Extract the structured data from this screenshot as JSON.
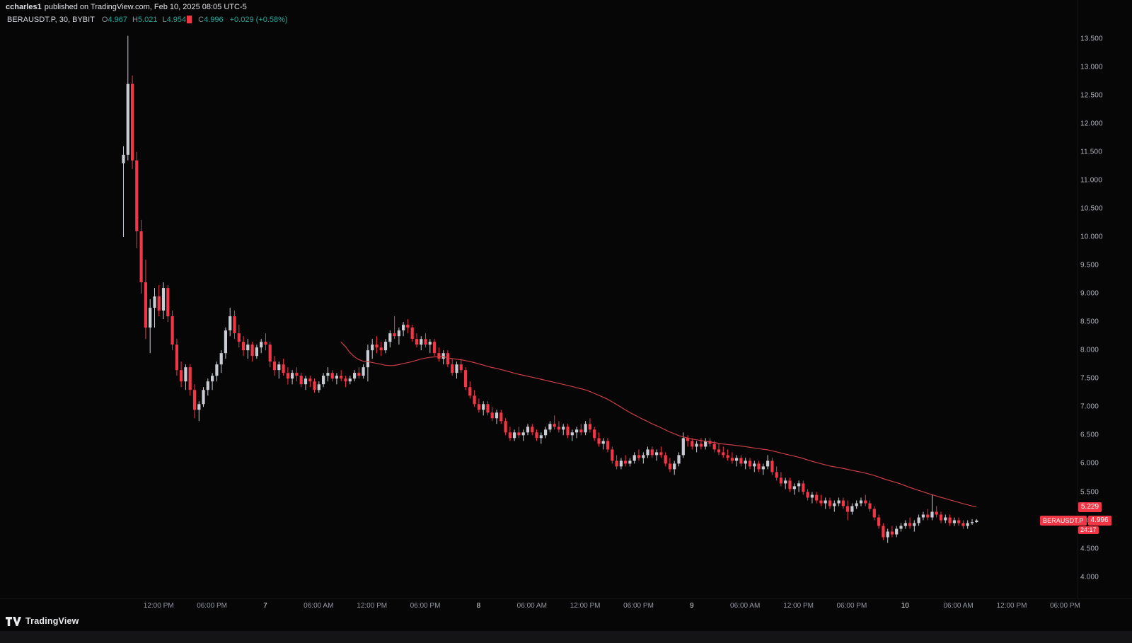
{
  "top_bar": {
    "username": "ccharles1",
    "text": "published on TradingView.com, Feb 10, 2025 08:05 UTC-5"
  },
  "legend": {
    "symbol_title": "BERAUSDT.P, 30, BYBIT",
    "o_label": "O",
    "o_value": "4.967",
    "h_label": "H",
    "h_value": "5.021",
    "l_label": "L",
    "l_value": "4.954",
    "c_label": "C",
    "c_value": "4.996",
    "change": "+0.029 (+0.58%)"
  },
  "footer": {
    "logo_text": "TradingView"
  },
  "colors": {
    "background": "#060607",
    "candle_up": "#c9ccd3",
    "candle_down": "#f23645",
    "ma_line": "#cc3d44",
    "badge_red": "#f23645",
    "axis_text": "#b2b5be",
    "axis_text_major": "#dfe1e6",
    "legend_value_green": "#26a69a"
  },
  "chart_data": {
    "type": "candlestick",
    "symbol": "BERAUSDT.P",
    "interval": "30",
    "exchange": "BYBIT",
    "title": "BERAUSDT.P, 30, BYBIT",
    "y_axis": {
      "min": 4.0,
      "max": 13.62,
      "tick_step": 0.5,
      "grid": false
    },
    "y_ticks": [
      "13.500",
      "13.000",
      "12.500",
      "12.000",
      "11.500",
      "11.000",
      "10.500",
      "10.000",
      "9.500",
      "9.000",
      "8.500",
      "8.000",
      "7.500",
      "7.000",
      "6.500",
      "6.000",
      "5.500",
      "5.000",
      "4.500",
      "4.000"
    ],
    "x_ticks": [
      {
        "text": "12:00 PM",
        "i": 8
      },
      {
        "text": "06:00 PM",
        "i": 20
      },
      {
        "text": "7",
        "i": 32,
        "major": true
      },
      {
        "text": "06:00 AM",
        "i": 44
      },
      {
        "text": "12:00 PM",
        "i": 56
      },
      {
        "text": "06:00 PM",
        "i": 68
      },
      {
        "text": "8",
        "i": 80,
        "major": true
      },
      {
        "text": "06:00 AM",
        "i": 92
      },
      {
        "text": "12:00 PM",
        "i": 104
      },
      {
        "text": "06:00 PM",
        "i": 116
      },
      {
        "text": "9",
        "i": 128,
        "major": true
      },
      {
        "text": "06:00 AM",
        "i": 140
      },
      {
        "text": "12:00 PM",
        "i": 152
      },
      {
        "text": "06:00 PM",
        "i": 164
      },
      {
        "text": "10",
        "i": 176,
        "major": true
      },
      {
        "text": "06:00 AM",
        "i": 188
      },
      {
        "text": "12:00 PM",
        "i": 200
      },
      {
        "text": "06:00 PM",
        "i": 212
      }
    ],
    "overlays": [
      {
        "name": "SMA",
        "period": 50,
        "last_value": 5.229
      }
    ],
    "badges": {
      "ma_value": "5.229",
      "symbol": "BERAUSDT.P",
      "last_price": "4.996",
      "countdown": "24:17"
    },
    "ohlc": [
      [
        11.3,
        11.6,
        10.0,
        11.45
      ],
      [
        11.45,
        13.55,
        11.35,
        12.7
      ],
      [
        12.7,
        12.85,
        11.2,
        11.35
      ],
      [
        11.35,
        11.5,
        9.8,
        10.1
      ],
      [
        10.1,
        10.3,
        9.0,
        9.2
      ],
      [
        9.2,
        9.6,
        8.2,
        8.4
      ],
      [
        8.4,
        8.9,
        7.95,
        8.75
      ],
      [
        8.75,
        9.1,
        8.4,
        8.95
      ],
      [
        8.95,
        9.15,
        8.6,
        8.7
      ],
      [
        8.7,
        9.2,
        8.55,
        9.1
      ],
      [
        9.1,
        9.15,
        8.5,
        8.6
      ],
      [
        8.6,
        8.7,
        8.0,
        8.1
      ],
      [
        8.1,
        8.2,
        7.55,
        7.65
      ],
      [
        7.65,
        7.8,
        7.35,
        7.45
      ],
      [
        7.45,
        7.75,
        7.3,
        7.7
      ],
      [
        7.7,
        7.75,
        7.2,
        7.3
      ],
      [
        7.3,
        7.4,
        6.8,
        6.95
      ],
      [
        6.95,
        7.1,
        6.75,
        7.05
      ],
      [
        7.05,
        7.35,
        7.0,
        7.3
      ],
      [
        7.3,
        7.5,
        7.2,
        7.45
      ],
      [
        7.45,
        7.6,
        7.3,
        7.55
      ],
      [
        7.55,
        7.8,
        7.45,
        7.75
      ],
      [
        7.75,
        8.0,
        7.6,
        7.95
      ],
      [
        7.95,
        8.4,
        7.85,
        8.35
      ],
      [
        8.35,
        8.75,
        8.25,
        8.6
      ],
      [
        8.6,
        8.7,
        8.2,
        8.3
      ],
      [
        8.3,
        8.45,
        8.05,
        8.15
      ],
      [
        8.15,
        8.25,
        7.9,
        8.0
      ],
      [
        8.0,
        8.2,
        7.85,
        8.1
      ],
      [
        8.1,
        8.15,
        7.8,
        7.9
      ],
      [
        7.9,
        8.1,
        7.85,
        8.05
      ],
      [
        8.05,
        8.2,
        7.95,
        8.15
      ],
      [
        8.15,
        8.3,
        8.0,
        8.1
      ],
      [
        8.1,
        8.15,
        7.7,
        7.8
      ],
      [
        7.8,
        7.9,
        7.55,
        7.65
      ],
      [
        7.65,
        7.8,
        7.5,
        7.75
      ],
      [
        7.75,
        7.85,
        7.55,
        7.6
      ],
      [
        7.6,
        7.7,
        7.4,
        7.5
      ],
      [
        7.5,
        7.65,
        7.4,
        7.6
      ],
      [
        7.6,
        7.7,
        7.45,
        7.55
      ],
      [
        7.55,
        7.6,
        7.35,
        7.4
      ],
      [
        7.4,
        7.55,
        7.3,
        7.5
      ],
      [
        7.5,
        7.55,
        7.35,
        7.45
      ],
      [
        7.45,
        7.5,
        7.25,
        7.3
      ],
      [
        7.3,
        7.45,
        7.25,
        7.4
      ],
      [
        7.4,
        7.6,
        7.35,
        7.55
      ],
      [
        7.55,
        7.7,
        7.45,
        7.6
      ],
      [
        7.6,
        7.65,
        7.45,
        7.5
      ],
      [
        7.5,
        7.6,
        7.4,
        7.55
      ],
      [
        7.55,
        7.65,
        7.45,
        7.5
      ],
      [
        7.5,
        7.55,
        7.35,
        7.45
      ],
      [
        7.45,
        7.55,
        7.4,
        7.5
      ],
      [
        7.5,
        7.65,
        7.45,
        7.6
      ],
      [
        7.6,
        7.7,
        7.5,
        7.55
      ],
      [
        7.55,
        7.75,
        7.5,
        7.7
      ],
      [
        7.7,
        8.1,
        7.45,
        8.0
      ],
      [
        8.0,
        8.2,
        7.85,
        8.1
      ],
      [
        8.1,
        8.25,
        7.95,
        8.05
      ],
      [
        8.05,
        8.15,
        7.9,
        8.0
      ],
      [
        8.0,
        8.2,
        7.95,
        8.15
      ],
      [
        8.15,
        8.35,
        8.05,
        8.3
      ],
      [
        8.3,
        8.6,
        8.2,
        8.25
      ],
      [
        8.25,
        8.4,
        8.1,
        8.35
      ],
      [
        8.35,
        8.5,
        8.25,
        8.45
      ],
      [
        8.45,
        8.55,
        8.3,
        8.4
      ],
      [
        8.4,
        8.45,
        8.15,
        8.2
      ],
      [
        8.2,
        8.3,
        8.05,
        8.1
      ],
      [
        8.1,
        8.25,
        8.0,
        8.2
      ],
      [
        8.2,
        8.3,
        8.05,
        8.1
      ],
      [
        8.1,
        8.2,
        7.95,
        8.15
      ],
      [
        8.15,
        8.2,
        7.9,
        7.95
      ],
      [
        7.95,
        8.05,
        7.8,
        7.85
      ],
      [
        7.85,
        8.0,
        7.75,
        7.95
      ],
      [
        7.95,
        8.0,
        7.7,
        7.75
      ],
      [
        7.75,
        7.85,
        7.55,
        7.6
      ],
      [
        7.6,
        7.8,
        7.5,
        7.75
      ],
      [
        7.75,
        7.85,
        7.6,
        7.65
      ],
      [
        7.65,
        7.7,
        7.3,
        7.35
      ],
      [
        7.35,
        7.45,
        7.15,
        7.2
      ],
      [
        7.2,
        7.3,
        7.0,
        7.05
      ],
      [
        7.05,
        7.15,
        6.9,
        6.95
      ],
      [
        6.95,
        7.1,
        6.85,
        7.05
      ],
      [
        7.05,
        7.1,
        6.85,
        6.9
      ],
      [
        6.9,
        7.0,
        6.75,
        6.8
      ],
      [
        6.8,
        6.95,
        6.7,
        6.9
      ],
      [
        6.9,
        6.95,
        6.7,
        6.75
      ],
      [
        6.75,
        6.8,
        6.5,
        6.55
      ],
      [
        6.55,
        6.65,
        6.4,
        6.45
      ],
      [
        6.45,
        6.6,
        6.4,
        6.55
      ],
      [
        6.55,
        6.65,
        6.45,
        6.5
      ],
      [
        6.5,
        6.6,
        6.4,
        6.55
      ],
      [
        6.55,
        6.7,
        6.5,
        6.65
      ],
      [
        6.65,
        6.7,
        6.5,
        6.55
      ],
      [
        6.55,
        6.6,
        6.4,
        6.45
      ],
      [
        6.45,
        6.55,
        6.35,
        6.5
      ],
      [
        6.5,
        6.65,
        6.45,
        6.6
      ],
      [
        6.6,
        6.75,
        6.55,
        6.7
      ],
      [
        6.7,
        6.85,
        6.6,
        6.65
      ],
      [
        6.65,
        6.75,
        6.55,
        6.6
      ],
      [
        6.6,
        6.7,
        6.5,
        6.65
      ],
      [
        6.65,
        6.7,
        6.45,
        6.5
      ],
      [
        6.5,
        6.6,
        6.4,
        6.55
      ],
      [
        6.55,
        6.65,
        6.45,
        6.6
      ],
      [
        6.6,
        6.7,
        6.5,
        6.55
      ],
      [
        6.55,
        6.75,
        6.5,
        6.7
      ],
      [
        6.7,
        6.8,
        6.55,
        6.6
      ],
      [
        6.6,
        6.65,
        6.4,
        6.45
      ],
      [
        6.45,
        6.55,
        6.3,
        6.35
      ],
      [
        6.35,
        6.45,
        6.25,
        6.4
      ],
      [
        6.4,
        6.45,
        6.2,
        6.25
      ],
      [
        6.25,
        6.3,
        6.0,
        6.05
      ],
      [
        6.05,
        6.15,
        5.9,
        5.95
      ],
      [
        5.95,
        6.1,
        5.9,
        6.05
      ],
      [
        6.05,
        6.15,
        5.95,
        6.0
      ],
      [
        6.0,
        6.1,
        5.95,
        6.05
      ],
      [
        6.05,
        6.2,
        6.0,
        6.15
      ],
      [
        6.15,
        6.25,
        6.05,
        6.1
      ],
      [
        6.1,
        6.2,
        6.0,
        6.15
      ],
      [
        6.15,
        6.3,
        6.1,
        6.25
      ],
      [
        6.25,
        6.3,
        6.1,
        6.15
      ],
      [
        6.15,
        6.25,
        6.05,
        6.2
      ],
      [
        6.2,
        6.3,
        6.1,
        6.15
      ],
      [
        6.15,
        6.2,
        5.95,
        6.0
      ],
      [
        6.0,
        6.1,
        5.85,
        5.9
      ],
      [
        5.9,
        6.05,
        5.8,
        6.0
      ],
      [
        6.0,
        6.2,
        5.95,
        6.15
      ],
      [
        6.15,
        6.55,
        6.1,
        6.45
      ],
      [
        6.45,
        6.5,
        6.3,
        6.4
      ],
      [
        6.4,
        6.45,
        6.25,
        6.3
      ],
      [
        6.3,
        6.4,
        6.2,
        6.35
      ],
      [
        6.35,
        6.45,
        6.25,
        6.3
      ],
      [
        6.3,
        6.45,
        6.25,
        6.4
      ],
      [
        6.4,
        6.45,
        6.3,
        6.35
      ],
      [
        6.35,
        6.4,
        6.2,
        6.25
      ],
      [
        6.25,
        6.35,
        6.15,
        6.2
      ],
      [
        6.2,
        6.3,
        6.1,
        6.15
      ],
      [
        6.15,
        6.25,
        6.05,
        6.1
      ],
      [
        6.1,
        6.2,
        6.0,
        6.05
      ],
      [
        6.05,
        6.15,
        5.95,
        6.1
      ],
      [
        6.1,
        6.15,
        5.95,
        6.0
      ],
      [
        6.0,
        6.1,
        5.9,
        6.05
      ],
      [
        6.05,
        6.1,
        5.9,
        5.95
      ],
      [
        5.95,
        6.05,
        5.85,
        6.0
      ],
      [
        6.0,
        6.05,
        5.85,
        5.9
      ],
      [
        5.9,
        6.0,
        5.8,
        5.95
      ],
      [
        5.95,
        6.15,
        5.9,
        6.05
      ],
      [
        6.05,
        6.1,
        5.8,
        5.85
      ],
      [
        5.85,
        5.95,
        5.7,
        5.75
      ],
      [
        5.75,
        5.85,
        5.6,
        5.65
      ],
      [
        5.65,
        5.75,
        5.55,
        5.7
      ],
      [
        5.7,
        5.75,
        5.5,
        5.55
      ],
      [
        5.55,
        5.65,
        5.45,
        5.6
      ],
      [
        5.6,
        5.7,
        5.5,
        5.65
      ],
      [
        5.65,
        5.7,
        5.45,
        5.5
      ],
      [
        5.5,
        5.55,
        5.35,
        5.4
      ],
      [
        5.4,
        5.5,
        5.3,
        5.45
      ],
      [
        5.45,
        5.5,
        5.3,
        5.35
      ],
      [
        5.35,
        5.45,
        5.25,
        5.3
      ],
      [
        5.3,
        5.4,
        5.2,
        5.35
      ],
      [
        5.35,
        5.4,
        5.2,
        5.25
      ],
      [
        5.25,
        5.35,
        5.15,
        5.3
      ],
      [
        5.3,
        5.4,
        5.25,
        5.35
      ],
      [
        5.35,
        5.4,
        5.2,
        5.25
      ],
      [
        5.25,
        5.35,
        5.0,
        5.15
      ],
      [
        5.15,
        5.3,
        5.1,
        5.25
      ],
      [
        5.25,
        5.35,
        5.2,
        5.3
      ],
      [
        5.3,
        5.4,
        5.25,
        5.35
      ],
      [
        5.35,
        5.45,
        5.25,
        5.3
      ],
      [
        5.3,
        5.35,
        5.15,
        5.2
      ],
      [
        5.2,
        5.25,
        5.0,
        5.05
      ],
      [
        5.05,
        5.1,
        4.85,
        4.9
      ],
      [
        4.9,
        4.95,
        4.65,
        4.7
      ],
      [
        4.7,
        4.85,
        4.6,
        4.8
      ],
      [
        4.8,
        4.9,
        4.7,
        4.75
      ],
      [
        4.75,
        4.9,
        4.7,
        4.85
      ],
      [
        4.85,
        4.95,
        4.8,
        4.9
      ],
      [
        4.9,
        5.0,
        4.85,
        4.95
      ],
      [
        4.95,
        5.05,
        4.85,
        4.9
      ],
      [
        4.9,
        5.0,
        4.8,
        4.95
      ],
      [
        4.95,
        5.1,
        4.9,
        5.05
      ],
      [
        5.05,
        5.15,
        5.0,
        5.1
      ],
      [
        5.1,
        5.2,
        5.0,
        5.05
      ],
      [
        5.05,
        5.45,
        5.0,
        5.15
      ],
      [
        5.15,
        5.25,
        5.05,
        5.1
      ],
      [
        5.1,
        5.15,
        4.95,
        5.0
      ],
      [
        5.0,
        5.1,
        4.95,
        5.05
      ],
      [
        5.05,
        5.1,
        4.9,
        4.95
      ],
      [
        4.95,
        5.05,
        4.9,
        5.0
      ],
      [
        5.0,
        5.05,
        4.9,
        4.95
      ],
      [
        4.95,
        5.0,
        4.85,
        4.9
      ],
      [
        4.9,
        5.0,
        4.85,
        4.95
      ],
      [
        4.95,
        5.02,
        4.92,
        4.967
      ],
      [
        4.967,
        5.021,
        4.954,
        4.996
      ]
    ]
  }
}
